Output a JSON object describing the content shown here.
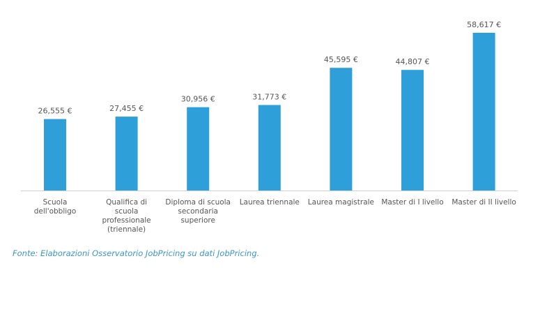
{
  "chart_data": {
    "type": "bar",
    "categories": [
      [
        "Scuola",
        "dell'obbligo"
      ],
      [
        "Qualifica di",
        "scuola",
        "professionale",
        "(triennale)"
      ],
      [
        "Diploma di scuola",
        "secondaria",
        "superiore"
      ],
      [
        "Laurea triennale"
      ],
      [
        "Laurea magistrale"
      ],
      [
        "Master di I livello"
      ],
      [
        "Master di II livello"
      ]
    ],
    "values": [
      26555,
      27455,
      30956,
      31773,
      45595,
      44807,
      58617
    ],
    "value_labels": [
      "26,555 €",
      "27,455 €",
      "30,956 €",
      "31,773 €",
      "45,595 €",
      "44,807 €",
      "58,617 €"
    ],
    "bar_color": "#2e9fd9",
    "ylim": [
      0,
      60000
    ],
    "grid": false,
    "title": "",
    "xlabel": "",
    "ylabel": ""
  },
  "source_note": "Fonte: Elaborazioni Osservatorio JobPricing su dati JobPricing.",
  "colors": {
    "bar": "#2e9fd9",
    "source_note": "#3b95c9",
    "text": "#555555"
  }
}
